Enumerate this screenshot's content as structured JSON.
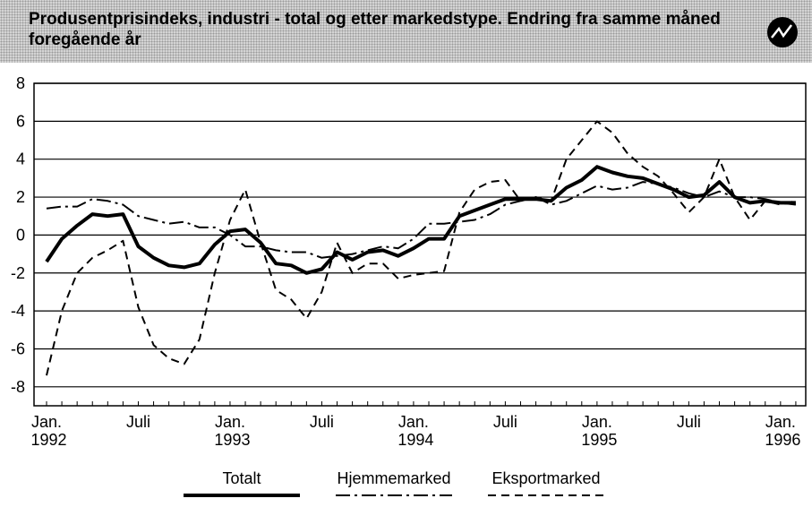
{
  "chart_data": {
    "type": "line",
    "title": "Produsentprisindeks, industri - total og etter markedstype. Endring fra samme måned foregående år",
    "categories": [
      "Jan. 1992",
      null,
      null,
      null,
      null,
      null,
      "Juli",
      null,
      null,
      null,
      null,
      null,
      "Jan. 1993",
      null,
      null,
      null,
      null,
      null,
      "Juli",
      null,
      null,
      null,
      null,
      null,
      "Jan. 1994",
      null,
      null,
      null,
      null,
      null,
      "Juli",
      null,
      null,
      null,
      null,
      null,
      "Jan. 1995",
      null,
      null,
      null,
      null,
      null,
      "Juli",
      null,
      null,
      null,
      null,
      null,
      "Jan. 1996",
      null
    ],
    "series": [
      {
        "name": "Totalt",
        "color": "#000000",
        "values": [
          -1.4,
          -0.2,
          0.5,
          1.1,
          1.0,
          1.1,
          -0.6,
          -1.2,
          -1.6,
          -1.7,
          -1.5,
          -0.5,
          0.2,
          0.3,
          -0.4,
          -1.5,
          -1.6,
          -2.0,
          -1.8,
          -0.9,
          -1.3,
          -0.9,
          -0.8,
          -1.1,
          -0.7,
          -0.2,
          -0.2,
          1.0,
          1.3,
          1.6,
          1.9,
          1.9,
          1.9,
          1.8,
          2.5,
          2.9,
          3.6,
          3.3,
          3.1,
          3.0,
          2.7,
          2.4,
          2.0,
          2.1,
          2.8,
          2.0,
          1.7,
          1.8,
          1.7,
          1.7
        ]
      },
      {
        "name": "Hjemmemarked",
        "color": "#000000",
        "values": [
          1.4,
          1.5,
          1.5,
          1.9,
          1.8,
          1.6,
          1.0,
          0.8,
          0.6,
          0.7,
          0.4,
          0.4,
          0.0,
          -0.6,
          -0.6,
          -0.8,
          -0.9,
          -0.9,
          -1.2,
          -1.1,
          -1.0,
          -0.8,
          -0.6,
          -0.7,
          -0.2,
          0.6,
          0.6,
          0.7,
          0.8,
          1.1,
          1.6,
          1.8,
          2.0,
          1.6,
          1.8,
          2.2,
          2.6,
          2.4,
          2.5,
          2.8,
          2.7,
          2.5,
          2.2,
          2.0,
          2.3,
          2.0,
          2.0,
          1.9,
          1.7,
          1.6
        ]
      },
      {
        "name": "Eksportmarked",
        "color": "#000000",
        "values": [
          -7.4,
          -4.0,
          -2.0,
          -1.2,
          -0.8,
          -0.3,
          -3.8,
          -5.8,
          -6.5,
          -6.8,
          -5.5,
          -2.0,
          0.8,
          2.4,
          -0.4,
          -2.9,
          -3.4,
          -4.4,
          -3.0,
          -0.4,
          -2.0,
          -1.5,
          -1.5,
          -2.3,
          -2.1,
          -2.0,
          -1.9,
          1.2,
          2.4,
          2.8,
          2.9,
          1.8,
          2.0,
          1.8,
          4.0,
          5.0,
          6.0,
          5.4,
          4.3,
          3.6,
          3.1,
          2.2,
          1.2,
          2.0,
          4.0,
          2.0,
          0.8,
          1.8,
          1.6,
          1.8
        ]
      }
    ],
    "ylim": [
      -9,
      8
    ],
    "yticks": [
      -8,
      -6,
      -4,
      -2,
      0,
      2,
      4,
      6,
      8
    ],
    "grid": true,
    "legend": "bottom"
  }
}
